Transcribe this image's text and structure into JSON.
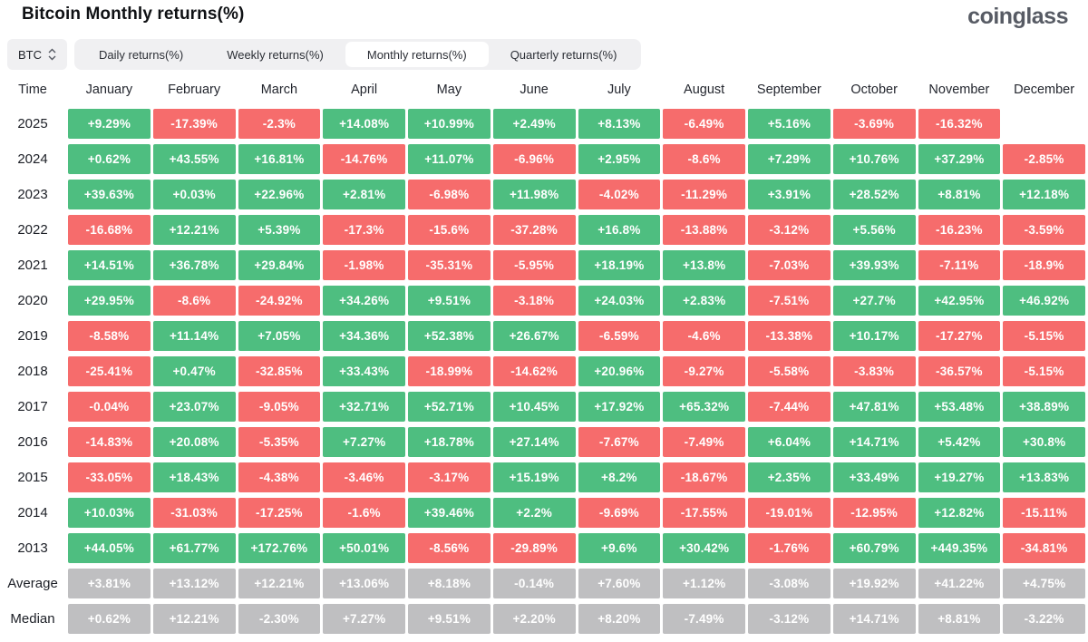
{
  "header": {
    "title": "Bitcoin Monthly returns(%)",
    "logo": "coinglass"
  },
  "toolbar": {
    "symbol_select": {
      "value": "BTC"
    },
    "tabs": [
      {
        "id": "daily",
        "label": "Daily returns(%)",
        "active": false
      },
      {
        "id": "weekly",
        "label": "Weekly returns(%)",
        "active": false
      },
      {
        "id": "monthly",
        "label": "Monthly returns(%)",
        "active": true
      },
      {
        "id": "quarterly",
        "label": "Quarterly returns(%)",
        "active": false
      }
    ]
  },
  "colors": {
    "positive": "#4ebe80",
    "negative": "#f66c6c",
    "summary": "#bfbfc1"
  },
  "table": {
    "time_header": "Time",
    "months": [
      "January",
      "February",
      "March",
      "April",
      "May",
      "June",
      "July",
      "August",
      "September",
      "October",
      "November",
      "December"
    ],
    "rows": [
      {
        "label": "2025",
        "type": "year",
        "values": [
          "+9.29%",
          "-17.39%",
          "-2.3%",
          "+14.08%",
          "+10.99%",
          "+2.49%",
          "+8.13%",
          "-6.49%",
          "+5.16%",
          "-3.69%",
          "-16.32%",
          ""
        ]
      },
      {
        "label": "2024",
        "type": "year",
        "values": [
          "+0.62%",
          "+43.55%",
          "+16.81%",
          "-14.76%",
          "+11.07%",
          "-6.96%",
          "+2.95%",
          "-8.6%",
          "+7.29%",
          "+10.76%",
          "+37.29%",
          "-2.85%"
        ]
      },
      {
        "label": "2023",
        "type": "year",
        "values": [
          "+39.63%",
          "+0.03%",
          "+22.96%",
          "+2.81%",
          "-6.98%",
          "+11.98%",
          "-4.02%",
          "-11.29%",
          "+3.91%",
          "+28.52%",
          "+8.81%",
          "+12.18%"
        ]
      },
      {
        "label": "2022",
        "type": "year",
        "values": [
          "-16.68%",
          "+12.21%",
          "+5.39%",
          "-17.3%",
          "-15.6%",
          "-37.28%",
          "+16.8%",
          "-13.88%",
          "-3.12%",
          "+5.56%",
          "-16.23%",
          "-3.59%"
        ]
      },
      {
        "label": "2021",
        "type": "year",
        "values": [
          "+14.51%",
          "+36.78%",
          "+29.84%",
          "-1.98%",
          "-35.31%",
          "-5.95%",
          "+18.19%",
          "+13.8%",
          "-7.03%",
          "+39.93%",
          "-7.11%",
          "-18.9%"
        ]
      },
      {
        "label": "2020",
        "type": "year",
        "values": [
          "+29.95%",
          "-8.6%",
          "-24.92%",
          "+34.26%",
          "+9.51%",
          "-3.18%",
          "+24.03%",
          "+2.83%",
          "-7.51%",
          "+27.7%",
          "+42.95%",
          "+46.92%"
        ]
      },
      {
        "label": "2019",
        "type": "year",
        "values": [
          "-8.58%",
          "+11.14%",
          "+7.05%",
          "+34.36%",
          "+52.38%",
          "+26.67%",
          "-6.59%",
          "-4.6%",
          "-13.38%",
          "+10.17%",
          "-17.27%",
          "-5.15%"
        ]
      },
      {
        "label": "2018",
        "type": "year",
        "values": [
          "-25.41%",
          "+0.47%",
          "-32.85%",
          "+33.43%",
          "-18.99%",
          "-14.62%",
          "+20.96%",
          "-9.27%",
          "-5.58%",
          "-3.83%",
          "-36.57%",
          "-5.15%"
        ]
      },
      {
        "label": "2017",
        "type": "year",
        "values": [
          "-0.04%",
          "+23.07%",
          "-9.05%",
          "+32.71%",
          "+52.71%",
          "+10.45%",
          "+17.92%",
          "+65.32%",
          "-7.44%",
          "+47.81%",
          "+53.48%",
          "+38.89%"
        ]
      },
      {
        "label": "2016",
        "type": "year",
        "values": [
          "-14.83%",
          "+20.08%",
          "-5.35%",
          "+7.27%",
          "+18.78%",
          "+27.14%",
          "-7.67%",
          "-7.49%",
          "+6.04%",
          "+14.71%",
          "+5.42%",
          "+30.8%"
        ]
      },
      {
        "label": "2015",
        "type": "year",
        "values": [
          "-33.05%",
          "+18.43%",
          "-4.38%",
          "-3.46%",
          "-3.17%",
          "+15.19%",
          "+8.2%",
          "-18.67%",
          "+2.35%",
          "+33.49%",
          "+19.27%",
          "+13.83%"
        ]
      },
      {
        "label": "2014",
        "type": "year",
        "values": [
          "+10.03%",
          "-31.03%",
          "-17.25%",
          "-1.6%",
          "+39.46%",
          "+2.2%",
          "-9.69%",
          "-17.55%",
          "-19.01%",
          "-12.95%",
          "+12.82%",
          "-15.11%"
        ]
      },
      {
        "label": "2013",
        "type": "year",
        "values": [
          "+44.05%",
          "+61.77%",
          "+172.76%",
          "+50.01%",
          "-8.56%",
          "-29.89%",
          "+9.6%",
          "+30.42%",
          "-1.76%",
          "+60.79%",
          "+449.35%",
          "-34.81%"
        ]
      },
      {
        "label": "Average",
        "type": "summary",
        "values": [
          "+3.81%",
          "+13.12%",
          "+12.21%",
          "+13.06%",
          "+8.18%",
          "-0.14%",
          "+7.60%",
          "+1.12%",
          "-3.08%",
          "+19.92%",
          "+41.22%",
          "+4.75%"
        ]
      },
      {
        "label": "Median",
        "type": "summary",
        "values": [
          "+0.62%",
          "+12.21%",
          "-2.30%",
          "+7.27%",
          "+9.51%",
          "+2.20%",
          "+8.20%",
          "-7.49%",
          "-3.12%",
          "+14.71%",
          "+8.81%",
          "-3.22%"
        ]
      }
    ]
  }
}
